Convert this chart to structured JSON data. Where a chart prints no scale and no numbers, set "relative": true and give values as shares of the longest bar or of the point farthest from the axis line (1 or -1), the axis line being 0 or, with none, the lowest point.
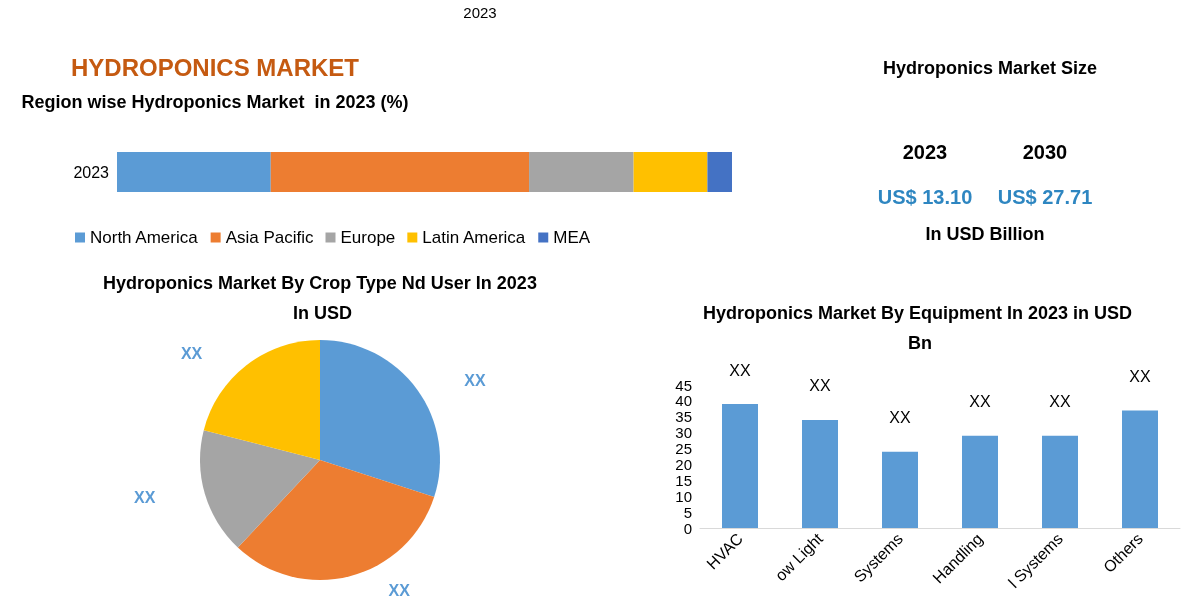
{
  "chart_data": [
    {
      "type": "other",
      "annotations": [
        "2023"
      ]
    },
    {
      "type": "bar",
      "title": "HYDROPONICS MARKET",
      "subtitle": "Region wise Hydroponics Market  in 2023 (%)",
      "orientation": "horizontal",
      "stacked": true,
      "relative": true,
      "categories": [
        "2023"
      ],
      "legend": "bottom",
      "series": [
        {
          "name": "North America",
          "color": "#5b9bd5",
          "values": [
            0.25
          ]
        },
        {
          "name": "Asia Pacific",
          "color": "#ed7d31",
          "values": [
            0.42
          ]
        },
        {
          "name": "Europe",
          "color": "#a5a5a5",
          "values": [
            0.17
          ]
        },
        {
          "name": "Latin America",
          "color": "#ffc000",
          "values": [
            0.12
          ]
        },
        {
          "name": "MEA",
          "color": "#4472c4",
          "values": [
            0.04
          ]
        }
      ]
    },
    {
      "type": "other",
      "title": "Hydroponics Market Size",
      "annotations": [
        "2023",
        "2030",
        "US$ 13.10",
        "US$ 27.71",
        "In USD Billion"
      ]
    },
    {
      "type": "pie",
      "title": "Hydroponics Market By Crop Type Nd User In 2023 In USD",
      "categories": [
        null,
        null,
        null,
        null
      ],
      "values": [
        30,
        32,
        17,
        21
      ],
      "colors": [
        "#5b9bd5",
        "#ed7d31",
        "#a5a5a5",
        "#ffc000"
      ],
      "value_labels": [
        "XX",
        "XX",
        "XX",
        "XX"
      ]
    },
    {
      "type": "bar",
      "title": "Hydroponics Market By Equipment In 2023 in USD Bn",
      "categories": [
        "HVAC",
        "ow Light",
        "Systems",
        "Handling",
        "l Systems",
        "Others"
      ],
      "values": [
        39,
        34,
        24,
        29,
        29,
        37
      ],
      "color": "#5b9bd5",
      "value_labels": [
        "XX",
        "XX",
        "XX",
        "XX",
        "XX",
        "XX"
      ],
      "ylim": [
        0,
        45
      ],
      "yticks": [
        0,
        5,
        10,
        15,
        20,
        25,
        30,
        35,
        40,
        45
      ],
      "grid": false
    }
  ]
}
